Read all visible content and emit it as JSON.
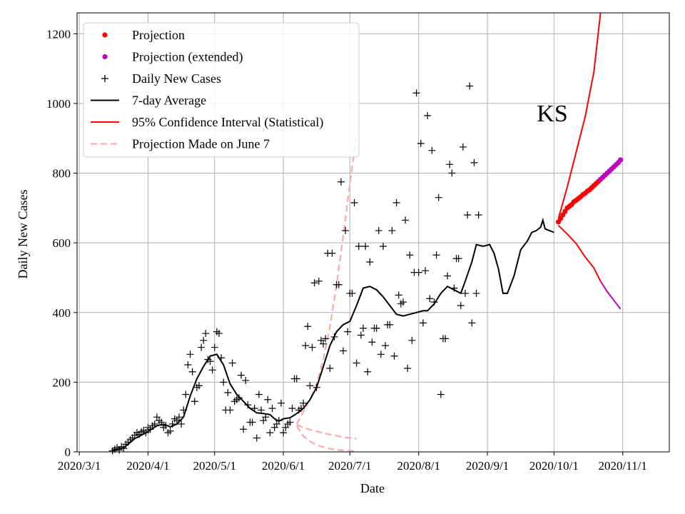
{
  "chart_data": {
    "type": "line",
    "state_label": "KS",
    "xlabel": "Date",
    "ylabel": "Daily New Cases",
    "x_domain_days": [
      -1,
      266
    ],
    "ylim": [
      0,
      1260
    ],
    "grid": true,
    "legend_position": "top-left",
    "x_ticks": [
      {
        "day": 0,
        "label": "2020/3/1"
      },
      {
        "day": 31,
        "label": "2020/4/1"
      },
      {
        "day": 61,
        "label": "2020/5/1"
      },
      {
        "day": 92,
        "label": "2020/6/1"
      },
      {
        "day": 122,
        "label": "2020/7/1"
      },
      {
        "day": 153,
        "label": "2020/8/1"
      },
      {
        "day": 184,
        "label": "2020/9/1"
      },
      {
        "day": 214,
        "label": "2020/10/1"
      },
      {
        "day": 245,
        "label": "2020/11/1"
      }
    ],
    "y_ticks": [
      0,
      200,
      400,
      600,
      800,
      1000,
      1200
    ],
    "legend": [
      {
        "key": "projection",
        "label": "Projection",
        "color": "#ff0000",
        "marker": "dot"
      },
      {
        "key": "projection_ext",
        "label": "Projection (extended)",
        "color": "#bf00bf",
        "marker": "dot"
      },
      {
        "key": "daily",
        "label": "Daily New Cases",
        "color": "#000000",
        "marker": "plus"
      },
      {
        "key": "avg",
        "label": "7-day Average",
        "color": "#000000",
        "marker": "line"
      },
      {
        "key": "ci",
        "label": "95% Confidence Interval (Statistical)",
        "color": "#ff0000",
        "marker": "line"
      },
      {
        "key": "june7",
        "label": "Projection Made on June 7",
        "color": "#ffaaaa",
        "marker": "dash"
      }
    ],
    "series": {
      "daily_new_cases": [
        [
          15,
          3
        ],
        [
          16,
          8
        ],
        [
          17,
          12
        ],
        [
          18,
          5
        ],
        [
          19,
          15
        ],
        [
          20,
          10
        ],
        [
          21,
          22
        ],
        [
          22,
          28
        ],
        [
          23,
          35
        ],
        [
          24,
          40
        ],
        [
          25,
          48
        ],
        [
          26,
          55
        ],
        [
          27,
          50
        ],
        [
          28,
          58
        ],
        [
          29,
          62
        ],
        [
          30,
          55
        ],
        [
          31,
          70
        ],
        [
          32,
          65
        ],
        [
          33,
          75
        ],
        [
          34,
          80
        ],
        [
          35,
          100
        ],
        [
          36,
          90
        ],
        [
          37,
          85
        ],
        [
          38,
          70
        ],
        [
          39,
          75
        ],
        [
          40,
          55
        ],
        [
          41,
          60
        ],
        [
          42,
          80
        ],
        [
          43,
          95
        ],
        [
          44,
          90
        ],
        [
          45,
          100
        ],
        [
          46,
          80
        ],
        [
          47,
          120
        ],
        [
          48,
          165
        ],
        [
          49,
          250
        ],
        [
          50,
          280
        ],
        [
          51,
          230
        ],
        [
          52,
          145
        ],
        [
          53,
          185
        ],
        [
          54,
          190
        ],
        [
          55,
          300
        ],
        [
          56,
          320
        ],
        [
          57,
          340
        ],
        [
          58,
          265
        ],
        [
          59,
          260
        ],
        [
          60,
          235
        ],
        [
          61,
          300
        ],
        [
          62,
          345
        ],
        [
          63,
          340
        ],
        [
          64,
          270
        ],
        [
          65,
          200
        ],
        [
          66,
          120
        ],
        [
          67,
          170
        ],
        [
          68,
          120
        ],
        [
          69,
          255
        ],
        [
          70,
          145
        ],
        [
          71,
          150
        ],
        [
          72,
          155
        ],
        [
          73,
          220
        ],
        [
          74,
          65
        ],
        [
          75,
          205
        ],
        [
          76,
          135
        ],
        [
          77,
          85
        ],
        [
          78,
          85
        ],
        [
          79,
          125
        ],
        [
          80,
          40
        ],
        [
          81,
          165
        ],
        [
          82,
          120
        ],
        [
          83,
          90
        ],
        [
          84,
          100
        ],
        [
          85,
          150
        ],
        [
          86,
          55
        ],
        [
          87,
          125
        ],
        [
          88,
          70
        ],
        [
          89,
          80
        ],
        [
          90,
          90
        ],
        [
          91,
          140
        ],
        [
          92,
          55
        ],
        [
          93,
          70
        ],
        [
          94,
          80
        ],
        [
          95,
          85
        ],
        [
          96,
          125
        ],
        [
          97,
          210
        ],
        [
          98,
          210
        ],
        [
          99,
          120
        ],
        [
          100,
          125
        ],
        [
          101,
          140
        ],
        [
          102,
          305
        ],
        [
          103,
          360
        ],
        [
          104,
          190
        ],
        [
          105,
          300
        ],
        [
          106,
          485
        ],
        [
          107,
          185
        ],
        [
          108,
          490
        ],
        [
          109,
          320
        ],
        [
          110,
          310
        ],
        [
          111,
          325
        ],
        [
          112,
          570
        ],
        [
          113,
          240
        ],
        [
          114,
          570
        ],
        [
          115,
          330
        ],
        [
          116,
          480
        ],
        [
          117,
          480
        ],
        [
          118,
          775
        ],
        [
          119,
          290
        ],
        [
          120,
          635
        ],
        [
          121,
          345
        ],
        [
          122,
          455
        ],
        [
          123,
          455
        ],
        [
          124,
          715
        ],
        [
          125,
          255
        ],
        [
          126,
          590
        ],
        [
          127,
          335
        ],
        [
          128,
          355
        ],
        [
          129,
          590
        ],
        [
          130,
          230
        ],
        [
          131,
          545
        ],
        [
          132,
          315
        ],
        [
          133,
          355
        ],
        [
          134,
          355
        ],
        [
          135,
          635
        ],
        [
          136,
          280
        ],
        [
          137,
          590
        ],
        [
          138,
          305
        ],
        [
          139,
          365
        ],
        [
          140,
          365
        ],
        [
          141,
          635
        ],
        [
          142,
          275
        ],
        [
          143,
          715
        ],
        [
          144,
          450
        ],
        [
          145,
          425
        ],
        [
          146,
          430
        ],
        [
          147,
          665
        ],
        [
          148,
          240
        ],
        [
          149,
          565
        ],
        [
          150,
          320
        ],
        [
          151,
          515
        ],
        [
          152,
          1030
        ],
        [
          153,
          515
        ],
        [
          154,
          885
        ],
        [
          155,
          370
        ],
        [
          156,
          520
        ],
        [
          157,
          965
        ],
        [
          158,
          440
        ],
        [
          159,
          865
        ],
        [
          160,
          430
        ],
        [
          161,
          565
        ],
        [
          162,
          730
        ],
        [
          163,
          165
        ],
        [
          164,
          325
        ],
        [
          165,
          325
        ],
        [
          166,
          505
        ],
        [
          167,
          825
        ],
        [
          168,
          800
        ],
        [
          169,
          470
        ],
        [
          170,
          555
        ],
        [
          171,
          555
        ],
        [
          172,
          420
        ],
        [
          173,
          875
        ],
        [
          174,
          455
        ],
        [
          175,
          680
        ],
        [
          176,
          1050
        ],
        [
          177,
          370
        ],
        [
          178,
          830
        ],
        [
          179,
          455
        ],
        [
          180,
          680
        ]
      ],
      "seven_day_average": [
        [
          15,
          3
        ],
        [
          20,
          12
        ],
        [
          25,
          38
        ],
        [
          30,
          55
        ],
        [
          35,
          75
        ],
        [
          38,
          80
        ],
        [
          41,
          72
        ],
        [
          44,
          80
        ],
        [
          47,
          100
        ],
        [
          50,
          160
        ],
        [
          53,
          210
        ],
        [
          56,
          245
        ],
        [
          59,
          275
        ],
        [
          62,
          280
        ],
        [
          65,
          250
        ],
        [
          68,
          195
        ],
        [
          71,
          165
        ],
        [
          74,
          145
        ],
        [
          77,
          125
        ],
        [
          80,
          112
        ],
        [
          83,
          110
        ],
        [
          86,
          107
        ],
        [
          88,
          95
        ],
        [
          90,
          88
        ],
        [
          92,
          95
        ],
        [
          95,
          98
        ],
        [
          98,
          110
        ],
        [
          101,
          125
        ],
        [
          104,
          150
        ],
        [
          107,
          185
        ],
        [
          110,
          245
        ],
        [
          113,
          305
        ],
        [
          116,
          345
        ],
        [
          119,
          365
        ],
        [
          122,
          375
        ],
        [
          125,
          420
        ],
        [
          128,
          470
        ],
        [
          131,
          475
        ],
        [
          134,
          465
        ],
        [
          137,
          445
        ],
        [
          140,
          420
        ],
        [
          143,
          395
        ],
        [
          146,
          390
        ],
        [
          149,
          395
        ],
        [
          152,
          400
        ],
        [
          155,
          405
        ],
        [
          157,
          405
        ],
        [
          160,
          425
        ],
        [
          163,
          455
        ],
        [
          166,
          475
        ],
        [
          169,
          465
        ],
        [
          172,
          455
        ],
        [
          174,
          490
        ],
        [
          177,
          545
        ],
        [
          179,
          595
        ],
        [
          182,
          590
        ],
        [
          185,
          595
        ],
        [
          187,
          570
        ],
        [
          189,
          525
        ],
        [
          191,
          455
        ],
        [
          193,
          455
        ],
        [
          196,
          505
        ],
        [
          199,
          580
        ],
        [
          202,
          605
        ],
        [
          204,
          630
        ],
        [
          206,
          635
        ],
        [
          208,
          645
        ],
        [
          209,
          665
        ],
        [
          210,
          640
        ],
        [
          212,
          635
        ],
        [
          214,
          630
        ]
      ],
      "projection": [
        [
          216,
          660
        ],
        [
          217,
          670
        ],
        [
          218,
          680
        ],
        [
          219,
          690
        ],
        [
          220,
          700
        ],
        [
          221,
          705
        ],
        [
          222,
          710
        ],
        [
          223,
          718
        ],
        [
          224,
          722
        ],
        [
          225,
          727
        ],
        [
          226,
          732
        ],
        [
          227,
          738
        ],
        [
          228,
          742
        ],
        [
          229,
          748
        ],
        [
          230,
          752
        ],
        [
          231,
          758
        ],
        [
          232,
          764
        ],
        [
          233,
          770
        ],
        [
          234,
          776
        ],
        [
          235,
          782
        ]
      ],
      "projection_extended": [
        [
          235,
          782
        ],
        [
          236,
          788
        ],
        [
          237,
          794
        ],
        [
          238,
          800
        ],
        [
          239,
          806
        ],
        [
          240,
          812
        ],
        [
          241,
          818
        ],
        [
          242,
          824
        ],
        [
          243,
          830
        ],
        [
          244,
          838
        ]
      ],
      "ci_upper": [
        [
          216,
          670
        ],
        [
          220,
          760
        ],
        [
          224,
          860
        ],
        [
          228,
          960
        ],
        [
          232,
          1090
        ],
        [
          235,
          1260
        ]
      ],
      "ci_lower": [
        [
          216,
          650
        ],
        [
          220,
          625
        ],
        [
          224,
          598
        ],
        [
          228,
          560
        ],
        [
          232,
          528
        ],
        [
          235,
          490
        ]
      ],
      "ci_lower_extended": [
        [
          235,
          490
        ],
        [
          238,
          460
        ],
        [
          241,
          435
        ],
        [
          244,
          410
        ]
      ],
      "june7_upper": [
        [
          98,
          80
        ],
        [
          101,
          115
        ],
        [
          104,
          150
        ],
        [
          107,
          195
        ],
        [
          110,
          265
        ],
        [
          113,
          360
        ],
        [
          116,
          480
        ],
        [
          119,
          620
        ],
        [
          122,
          770
        ],
        [
          125,
          910
        ]
      ],
      "june7_middle": [
        [
          98,
          78
        ],
        [
          101,
          70
        ],
        [
          104,
          64
        ],
        [
          107,
          59
        ],
        [
          110,
          54
        ],
        [
          113,
          50
        ],
        [
          116,
          46
        ],
        [
          119,
          42
        ],
        [
          122,
          40
        ],
        [
          125,
          38
        ]
      ],
      "june7_lower": [
        [
          98,
          75
        ],
        [
          101,
          45
        ],
        [
          104,
          30
        ],
        [
          107,
          20
        ],
        [
          110,
          14
        ],
        [
          113,
          9
        ],
        [
          116,
          6
        ],
        [
          119,
          4
        ],
        [
          122,
          3
        ],
        [
          125,
          2
        ]
      ]
    }
  }
}
